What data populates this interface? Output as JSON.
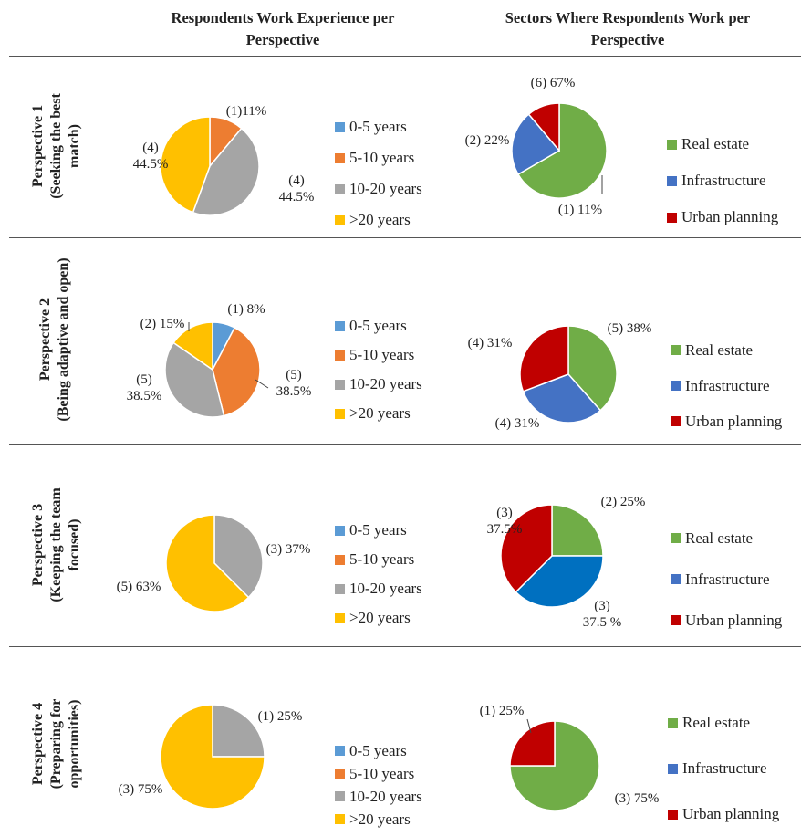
{
  "headers": {
    "experience": "Respondents Work Experience per Perspective",
    "sectors": "Sectors Where Respondents Work per Perspective"
  },
  "rows": [
    {
      "label_line1": "Perspective 1",
      "label_line2": "(Seeking the best",
      "label_line3": "match)"
    },
    {
      "label_line1": "Perspective 2",
      "label_line2": "(Being adaptive and open)",
      "label_line3": ""
    },
    {
      "label_line1": "Perspective 3",
      "label_line2": "(Keeping the team",
      "label_line3": "focused)"
    },
    {
      "label_line1": "Perspective 4",
      "label_line2": "(Preparing for",
      "label_line3": "opportunities)"
    }
  ],
  "legends": {
    "experience": [
      {
        "label": "0-5 years",
        "color": "#5B9BD5"
      },
      {
        "label": "5-10 years",
        "color": "#ED7D31"
      },
      {
        "label": "10-20 years",
        "color": "#A5A5A5"
      },
      {
        "label": ">20 years",
        "color": "#FFC000"
      }
    ],
    "sectors": [
      {
        "label": "Real estate",
        "color": "#70AD47"
      },
      {
        "label": "Infrastructure",
        "color": "#4472C4"
      },
      {
        "label": "Urban planning",
        "color": "#C00000"
      }
    ]
  },
  "chart_data": [
    {
      "type": "pie",
      "title": "Perspective 1 — Work Experience",
      "slices": [
        {
          "category": "0-5 years",
          "count": 0,
          "percent": 0,
          "color": "#5B9BD5",
          "labels": []
        },
        {
          "category": "5-10 years",
          "count": 1,
          "percent": 11,
          "color": "#ED7D31",
          "labels": [
            "(1)11%"
          ]
        },
        {
          "category": "10-20 years",
          "count": 4,
          "percent": 44.5,
          "color": "#A5A5A5",
          "labels": [
            "(4)",
            "44.5%"
          ]
        },
        {
          "category": ">20 years",
          "count": 4,
          "percent": 44.5,
          "color": "#FFC000",
          "labels": [
            "(4)",
            "44.5%"
          ]
        }
      ]
    },
    {
      "type": "pie",
      "title": "Perspective 1 — Sectors",
      "slices": [
        {
          "category": "Real estate",
          "count": 6,
          "percent": 67,
          "color": "#70AD47",
          "labels": [
            "(6) 67%"
          ]
        },
        {
          "category": "Infrastructure",
          "count": 2,
          "percent": 22,
          "color": "#4472C4",
          "labels": [
            "(2) 22%"
          ]
        },
        {
          "category": "Urban planning",
          "count": 1,
          "percent": 11,
          "color": "#C00000",
          "labels": [
            "(1) 11%"
          ]
        }
      ]
    },
    {
      "type": "pie",
      "title": "Perspective 2 — Work Experience",
      "slices": [
        {
          "category": "0-5 years",
          "count": 1,
          "percent": 8,
          "color": "#5B9BD5",
          "labels": [
            "(1) 8%"
          ]
        },
        {
          "category": "5-10 years",
          "count": 5,
          "percent": 38.5,
          "color": "#ED7D31",
          "labels": [
            "(5)",
            "38.5%"
          ]
        },
        {
          "category": "10-20 years",
          "count": 5,
          "percent": 38.5,
          "color": "#A5A5A5",
          "labels": [
            "(5)",
            "38.5%"
          ]
        },
        {
          "category": ">20 years",
          "count": 2,
          "percent": 15,
          "color": "#FFC000",
          "labels": [
            "(2) 15%"
          ]
        }
      ]
    },
    {
      "type": "pie",
      "title": "Perspective 2 — Sectors",
      "slices": [
        {
          "category": "Real estate",
          "count": 5,
          "percent": 38,
          "color": "#70AD47",
          "labels": [
            "(5) 38%"
          ]
        },
        {
          "category": "Infrastructure",
          "count": 4,
          "percent": 31,
          "color": "#4472C4",
          "labels": [
            "(4) 31%"
          ]
        },
        {
          "category": "Urban planning",
          "count": 4,
          "percent": 31,
          "color": "#C00000",
          "labels": [
            "(4) 31%"
          ]
        }
      ]
    },
    {
      "type": "pie",
      "title": "Perspective 3 — Work Experience",
      "slices": [
        {
          "category": "0-5 years",
          "count": 0,
          "percent": 0,
          "color": "#5B9BD5",
          "labels": []
        },
        {
          "category": "5-10 years",
          "count": 0,
          "percent": 0,
          "color": "#ED7D31",
          "labels": []
        },
        {
          "category": "10-20 years",
          "count": 3,
          "percent": 37,
          "color": "#A5A5A5",
          "labels": [
            "(3) 37%"
          ]
        },
        {
          "category": ">20 years",
          "count": 5,
          "percent": 63,
          "color": "#FFC000",
          "labels": [
            "(5) 63%"
          ]
        }
      ]
    },
    {
      "type": "pie",
      "title": "Perspective 3 — Sectors",
      "slices": [
        {
          "category": "Real estate",
          "count": 2,
          "percent": 25,
          "color": "#70AD47",
          "labels": [
            "(2) 25%"
          ]
        },
        {
          "category": "Infrastructure",
          "count": 3,
          "percent": 37.5,
          "color": "#0070C0",
          "labels": [
            "(3)",
            "37.5 %"
          ]
        },
        {
          "category": "Urban planning",
          "count": 3,
          "percent": 37.5,
          "color": "#C00000",
          "labels": [
            "(3)",
            "37.5%"
          ]
        }
      ]
    },
    {
      "type": "pie",
      "title": "Perspective 4 — Work Experience",
      "slices": [
        {
          "category": "0-5 years",
          "count": 0,
          "percent": 0,
          "color": "#5B9BD5",
          "labels": []
        },
        {
          "category": "5-10 years",
          "count": 0,
          "percent": 0,
          "color": "#ED7D31",
          "labels": []
        },
        {
          "category": "10-20 years",
          "count": 1,
          "percent": 25,
          "color": "#A5A5A5",
          "labels": [
            "(1) 25%"
          ]
        },
        {
          "category": ">20 years",
          "count": 3,
          "percent": 75,
          "color": "#FFC000",
          "labels": [
            "(3) 75%"
          ]
        }
      ]
    },
    {
      "type": "pie",
      "title": "Perspective 4 — Sectors",
      "slices": [
        {
          "category": "Real estate",
          "count": 3,
          "percent": 75,
          "color": "#70AD47",
          "labels": [
            "(3) 75%"
          ]
        },
        {
          "category": "Infrastructure",
          "count": 0,
          "percent": 0,
          "color": "#4472C4",
          "labels": []
        },
        {
          "category": "Urban planning",
          "count": 1,
          "percent": 25,
          "color": "#C00000",
          "labels": [
            "(1) 25%"
          ]
        }
      ]
    }
  ]
}
